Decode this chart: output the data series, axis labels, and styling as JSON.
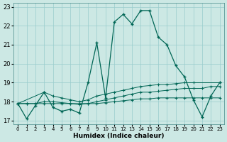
{
  "xlabel": "Humidex (Indice chaleur)",
  "background_color": "#cce8e4",
  "grid_color": "#99cccc",
  "line_color": "#006655",
  "xlim": [
    -0.5,
    23.5
  ],
  "ylim": [
    16.8,
    23.2
  ],
  "yticks": [
    17,
    18,
    19,
    20,
    21,
    22,
    23
  ],
  "xticks": [
    0,
    1,
    2,
    3,
    4,
    5,
    6,
    7,
    8,
    9,
    10,
    11,
    12,
    13,
    14,
    15,
    16,
    17,
    18,
    19,
    20,
    21,
    22,
    23
  ],
  "line1_x": [
    0,
    1,
    2,
    3,
    4,
    5,
    6,
    7,
    8,
    9,
    10,
    11,
    12,
    13,
    14,
    15,
    16,
    17,
    18,
    19,
    20,
    21,
    22,
    23
  ],
  "line1_y": [
    17.9,
    17.1,
    17.8,
    18.5,
    17.7,
    17.5,
    17.6,
    17.4,
    19.0,
    21.1,
    18.2,
    22.2,
    22.6,
    22.1,
    22.8,
    22.8,
    21.4,
    21.0,
    19.9,
    19.3,
    18.1,
    17.2,
    18.3,
    19.0
  ],
  "line2_x": [
    0,
    3,
    4,
    5,
    6,
    7,
    8,
    9,
    10,
    11,
    12,
    13,
    14,
    15,
    16,
    17,
    18,
    19,
    20,
    23
  ],
  "line2_y": [
    17.9,
    18.5,
    18.3,
    18.2,
    18.1,
    18.0,
    18.1,
    18.3,
    18.4,
    18.5,
    18.6,
    18.7,
    18.8,
    18.85,
    18.9,
    18.9,
    18.95,
    19.0,
    19.0,
    19.0
  ],
  "line3_x": [
    0,
    1,
    2,
    3,
    4,
    5,
    6,
    7,
    8,
    9,
    10,
    11,
    12,
    13,
    14,
    15,
    16,
    17,
    18,
    19,
    20,
    21,
    22,
    23
  ],
  "line3_y": [
    17.9,
    17.9,
    17.9,
    18.0,
    18.0,
    17.95,
    17.9,
    17.85,
    17.9,
    18.0,
    18.1,
    18.2,
    18.3,
    18.4,
    18.5,
    18.5,
    18.55,
    18.6,
    18.65,
    18.7,
    18.7,
    18.7,
    18.8,
    18.8
  ],
  "line4_x": [
    0,
    1,
    2,
    3,
    4,
    5,
    6,
    7,
    8,
    9,
    10,
    11,
    12,
    13,
    14,
    15,
    16,
    17,
    18,
    19,
    20,
    21,
    22,
    23
  ],
  "line4_y": [
    17.9,
    17.9,
    17.9,
    17.9,
    17.9,
    17.9,
    17.9,
    17.9,
    17.9,
    17.9,
    17.95,
    18.0,
    18.05,
    18.1,
    18.15,
    18.15,
    18.2,
    18.2,
    18.2,
    18.2,
    18.2,
    18.2,
    18.2,
    18.2
  ]
}
